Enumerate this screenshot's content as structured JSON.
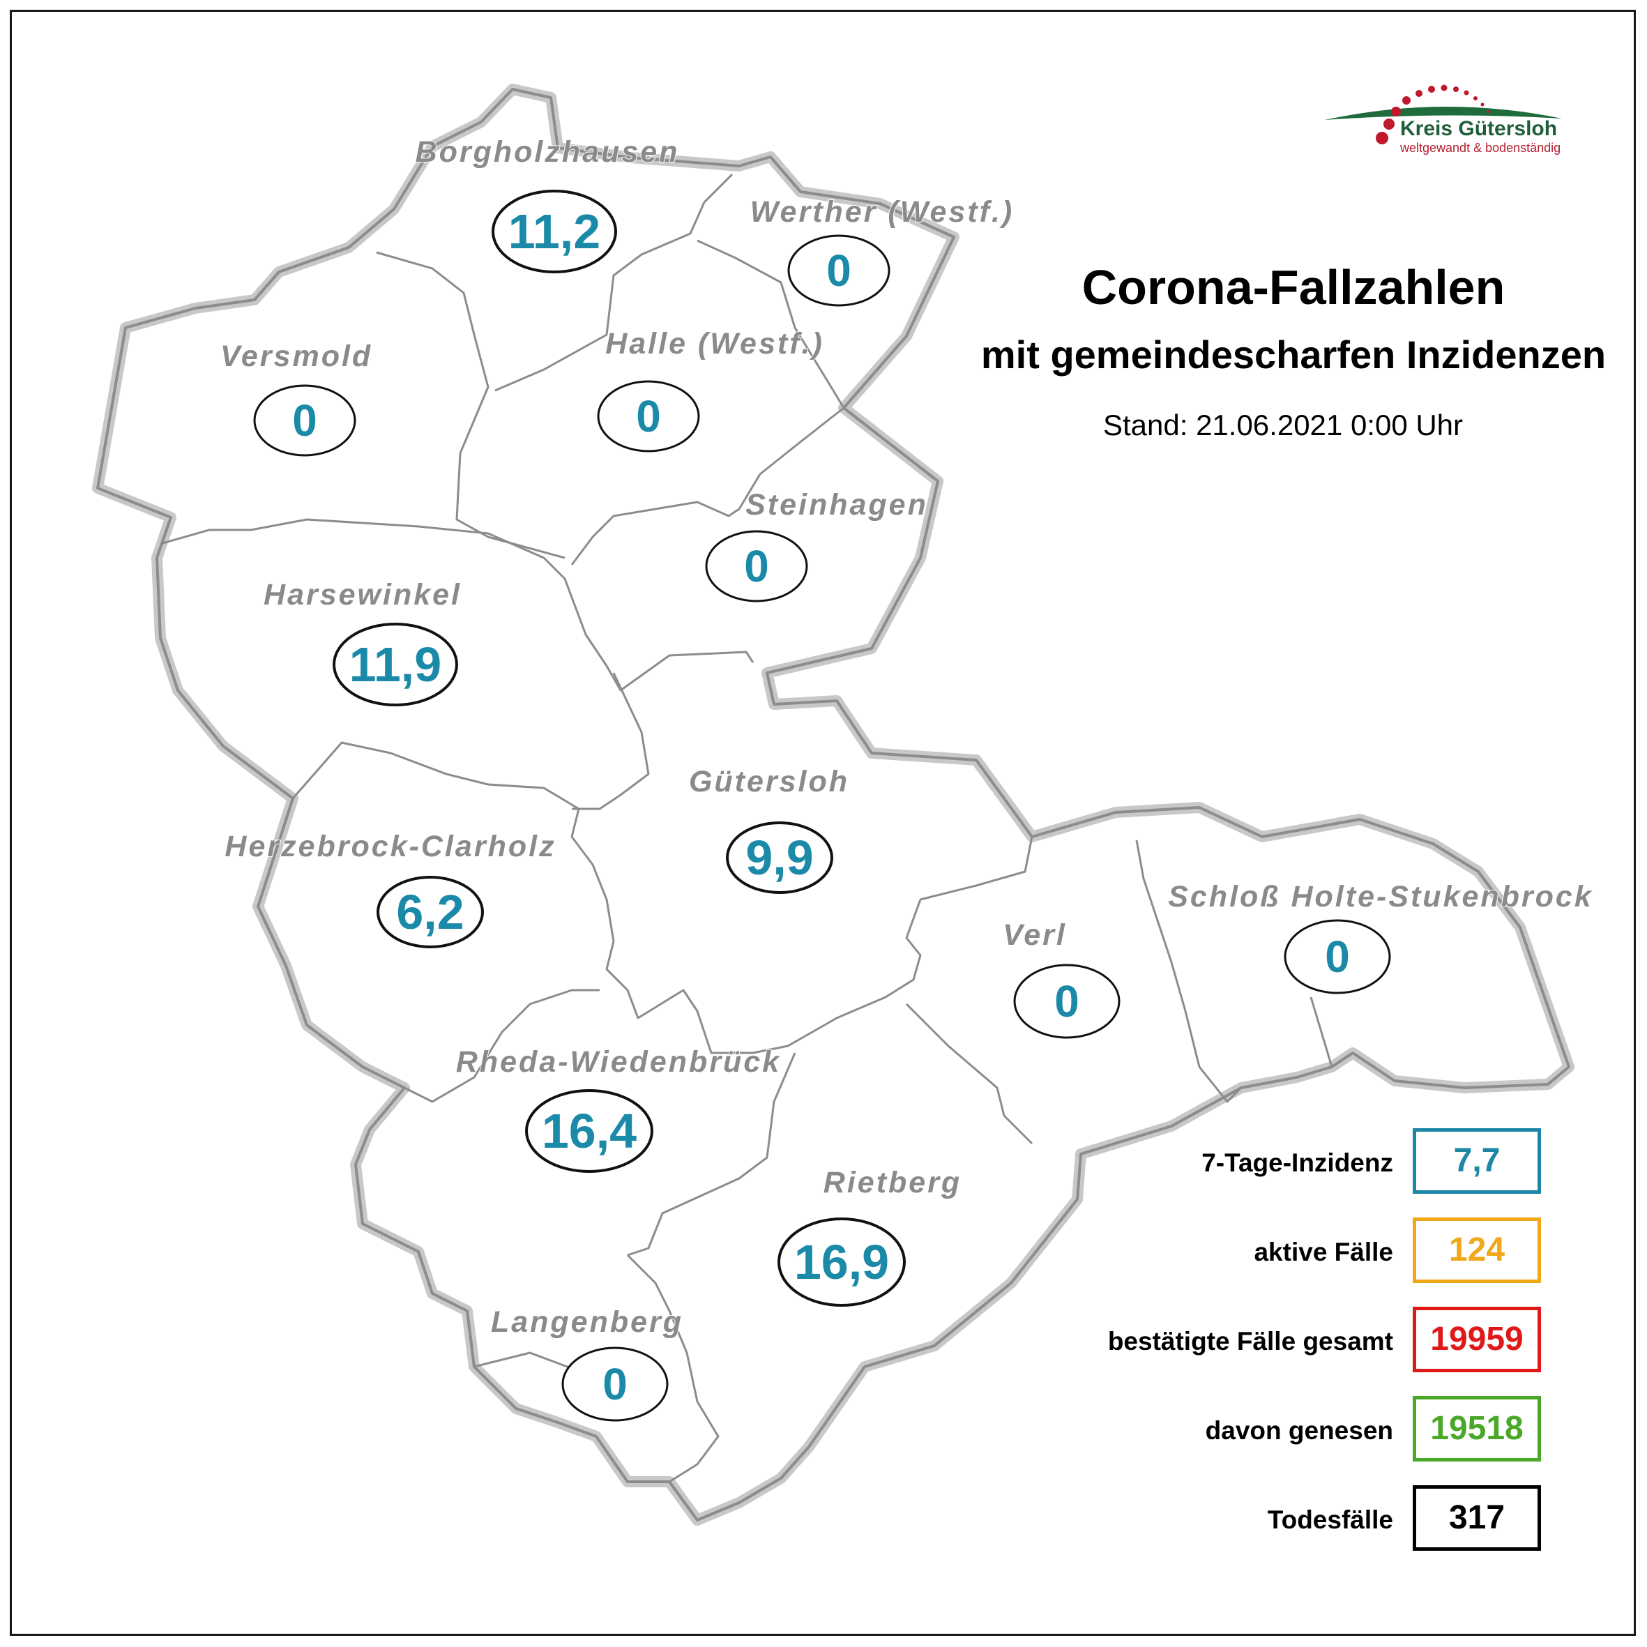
{
  "title": "Corona-Fallzahlen",
  "subtitle": "mit gemeindescharfen Inzidenzen",
  "stand": "Stand: 21.06.2021 0:00 Uhr",
  "logo": {
    "name": "Kreis Gütersloh",
    "tagline": "weltgewandt & bodenständig"
  },
  "municipalities": [
    {
      "name": "Borgholzhausen",
      "value": "11,2"
    },
    {
      "name": "Werther (Westf.)",
      "value": "0"
    },
    {
      "name": "Versmold",
      "value": "0"
    },
    {
      "name": "Halle (Westf.)",
      "value": "0"
    },
    {
      "name": "Steinhagen",
      "value": "0"
    },
    {
      "name": "Harsewinkel",
      "value": "11,9"
    },
    {
      "name": "Gütersloh",
      "value": "9,9"
    },
    {
      "name": "Herzebrock-Clarholz",
      "value": "6,2"
    },
    {
      "name": "Verl",
      "value": "0"
    },
    {
      "name": "Schloß Holte-Stukenbrock",
      "value": "0"
    },
    {
      "name": "Rheda-Wiedenbrück",
      "value": "16,4"
    },
    {
      "name": "Rietberg",
      "value": "16,9"
    },
    {
      "name": "Langenberg",
      "value": "0"
    }
  ],
  "legend": [
    {
      "label": "7-Tage-Inzidenz",
      "value": "7,7",
      "color": "#1c86a6"
    },
    {
      "label": "aktive Fälle",
      "value": "124",
      "color": "#f0a818"
    },
    {
      "label": "bestätigte Fälle gesamt",
      "value": "19959",
      "color": "#e01818"
    },
    {
      "label": "davon genesen",
      "value": "19518",
      "color": "#4aa828"
    },
    {
      "label": "Todesfälle",
      "value": "317",
      "color": "#000000"
    }
  ],
  "colors": {
    "border": "#999999",
    "value_text": "#1a8aa8",
    "label_text": "#8a8a8a"
  }
}
